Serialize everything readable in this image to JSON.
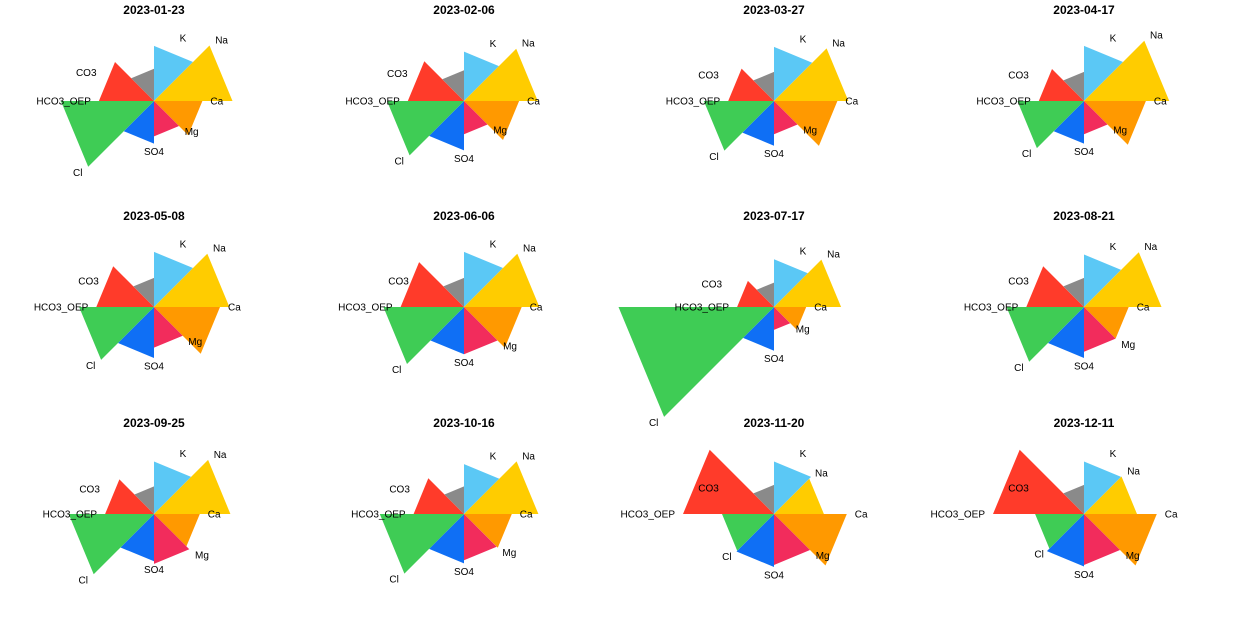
{
  "chart_data": {
    "type": "star",
    "variables": [
      "K",
      "Na",
      "Ca",
      "Mg",
      "SO4",
      "Cl",
      "HCO3_OEP",
      "CO3"
    ],
    "colors": {
      "K": "#5bc8f5",
      "Na": "#ffcc00",
      "Ca": "#ff9900",
      "Mg": "#f22c5c",
      "SO4": "#0f6ff5",
      "Cl": "#3fcc55",
      "HCO3_OEP": "#ff3b2a",
      "CO3": "#8a8a8a"
    },
    "panels": [
      {
        "title": "2023-01-23",
        "values": {
          "K": 1.06,
          "Na": 1.51,
          "Ca": 0.93,
          "Mg": 0.68,
          "SO4": 0.82,
          "Cl": 1.79,
          "HCO3_OEP": 1.06,
          "CO3": 0.62
        }
      },
      {
        "title": "2023-02-06",
        "values": {
          "K": 0.95,
          "Na": 1.42,
          "Ca": 1.06,
          "Mg": 0.64,
          "SO4": 0.95,
          "Cl": 1.48,
          "HCO3_OEP": 1.08,
          "CO3": 0.59
        }
      },
      {
        "title": "2023-03-27",
        "values": {
          "K": 1.04,
          "Na": 1.43,
          "Ca": 1.22,
          "Mg": 0.64,
          "SO4": 0.86,
          "Cl": 1.35,
          "HCO3_OEP": 0.88,
          "CO3": 0.56
        }
      },
      {
        "title": "2023-04-17",
        "values": {
          "K": 1.06,
          "Na": 1.64,
          "Ca": 1.19,
          "Mg": 0.64,
          "SO4": 0.82,
          "Cl": 1.28,
          "HCO3_OEP": 0.87,
          "CO3": 0.56
        }
      },
      {
        "title": "2023-05-08",
        "values": {
          "K": 1.06,
          "Na": 1.45,
          "Ca": 1.27,
          "Mg": 0.78,
          "SO4": 0.98,
          "Cl": 1.44,
          "HCO3_OEP": 1.11,
          "CO3": 0.56
        }
      },
      {
        "title": "2023-06-06",
        "values": {
          "K": 1.06,
          "Na": 1.45,
          "Ca": 1.11,
          "Mg": 0.91,
          "SO4": 0.91,
          "Cl": 1.55,
          "HCO3_OEP": 1.22,
          "CO3": 0.56
        }
      },
      {
        "title": "2023-07-17",
        "values": {
          "K": 0.92,
          "Na": 1.29,
          "Ca": 0.62,
          "Mg": 0.44,
          "SO4": 0.84,
          "Cl": 2.99,
          "HCO3_OEP": 0.71,
          "CO3": 0.47
        }
      },
      {
        "title": "2023-08-21",
        "values": {
          "K": 1.01,
          "Na": 1.49,
          "Ca": 0.86,
          "Mg": 0.86,
          "SO4": 0.98,
          "Cl": 1.49,
          "HCO3_OEP": 1.11,
          "CO3": 0.56
        }
      },
      {
        "title": "2023-09-25",
        "values": {
          "K": 1.01,
          "Na": 1.47,
          "Ca": 0.88,
          "Mg": 0.96,
          "SO4": 0.91,
          "Cl": 1.64,
          "HCO3_OEP": 0.94,
          "CO3": 0.53
        }
      },
      {
        "title": "2023-10-16",
        "values": {
          "K": 0.96,
          "Na": 1.43,
          "Ca": 0.92,
          "Mg": 0.89,
          "SO4": 0.95,
          "Cl": 1.62,
          "HCO3_OEP": 0.97,
          "CO3": 0.53
        }
      },
      {
        "title": "2023-11-20",
        "values": {
          "K": 1.01,
          "Na": 0.96,
          "Ca": 1.4,
          "Mg": 0.98,
          "SO4": 1.02,
          "Cl": 1.0,
          "HCO3_OEP": 1.75,
          "CO3": 0.56
        }
      },
      {
        "title": "2023-12-11",
        "values": {
          "K": 1.01,
          "Na": 1.02,
          "Ca": 1.4,
          "Mg": 0.98,
          "SO4": 1.01,
          "Cl": 0.94,
          "HCO3_OEP": 1.75,
          "CO3": 0.56
        }
      }
    ]
  }
}
